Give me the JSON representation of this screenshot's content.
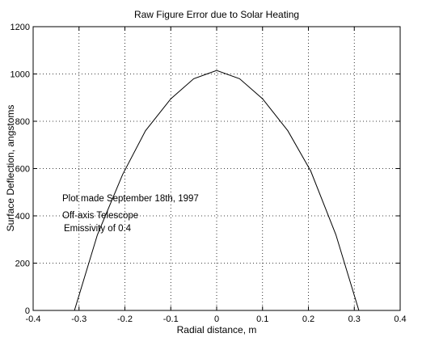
{
  "chart_data": {
    "type": "line",
    "title": "Raw Figure Error due to Solar Heating",
    "xlabel": "Radial distance, m",
    "ylabel": "Surface Deflection, angstoms",
    "xlim": [
      -0.4,
      0.4
    ],
    "ylim": [
      0,
      1200
    ],
    "xticks": [
      "-0.4",
      "-0.3",
      "-0.2",
      "-0.1",
      "0",
      "0.1",
      "0.2",
      "0.3",
      "0.4"
    ],
    "yticks": [
      "0",
      "200",
      "400",
      "600",
      "800",
      "1000",
      "1200"
    ],
    "grid": true,
    "series": [
      {
        "x": [
          -0.31,
          -0.26,
          -0.205,
          -0.155,
          -0.1,
          -0.05,
          0.0,
          0.05,
          0.1,
          0.155,
          0.205,
          0.26,
          0.31
        ],
        "y": [
          0,
          320,
          575,
          760,
          895,
          980,
          1015,
          980,
          895,
          760,
          590,
          320,
          0
        ],
        "color": "#000000"
      }
    ],
    "annotations": [
      "Plot made September 18th, 1997",
      "Off-axis Telescope",
      "Emissivity of 0.4"
    ]
  }
}
